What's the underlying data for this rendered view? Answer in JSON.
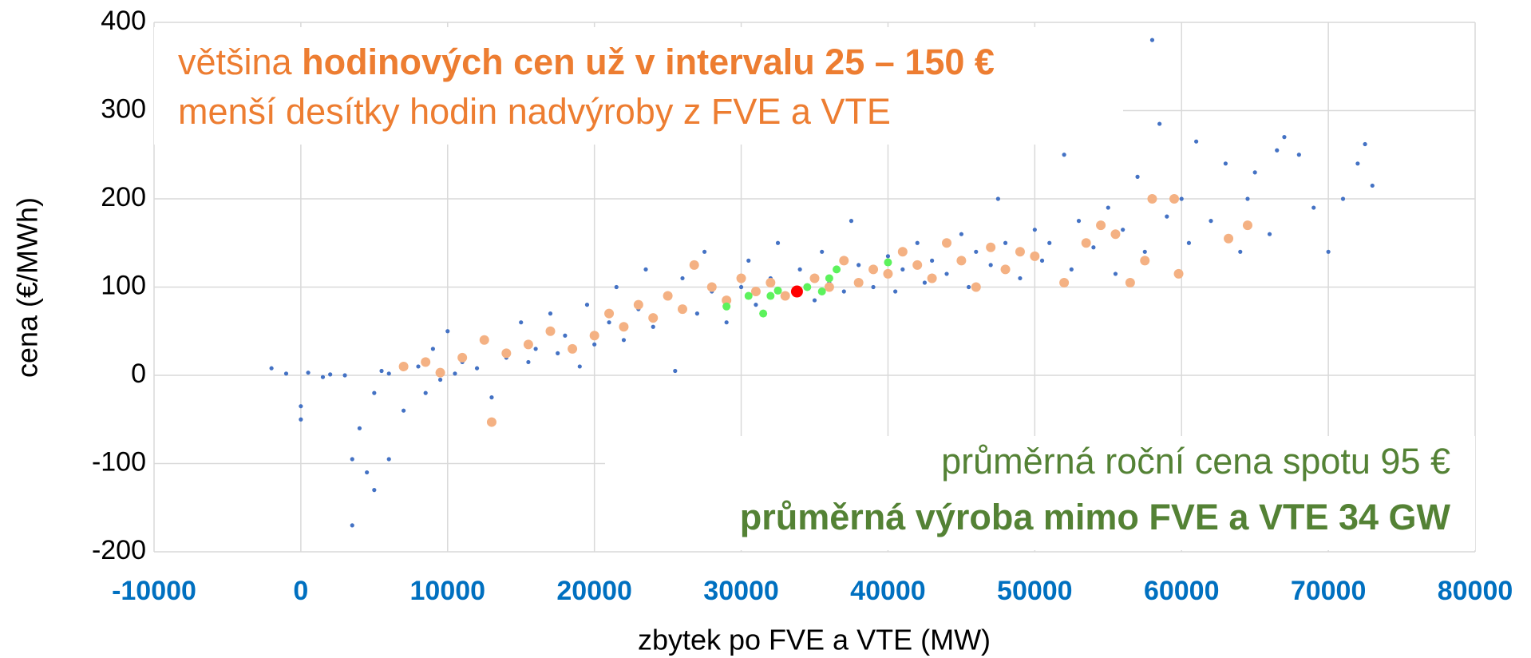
{
  "chart_data": {
    "type": "scatter",
    "x_label": "zbytek po FVE a VTE (MW)",
    "y_label": "cena (€/MWh)",
    "xlim": [
      -10000,
      80000
    ],
    "xticks": [
      -10000,
      0,
      10000,
      20000,
      30000,
      40000,
      50000,
      60000,
      70000,
      80000
    ],
    "ylim": [
      -200,
      400
    ],
    "yticks": [
      -200,
      -100,
      0,
      100,
      200,
      300,
      400
    ],
    "grid": true,
    "xtick_color": "#0070c0",
    "series": [
      {
        "color": "#4472c4",
        "size": 2.6,
        "x": [
          -2000,
          -1000,
          0,
          0,
          500,
          1500,
          2000,
          3000,
          3500,
          3500,
          4000,
          4500,
          5000,
          5000,
          5500,
          6000,
          6000,
          7000,
          8000,
          8500,
          9000,
          9500,
          10000,
          10500,
          11000,
          12000,
          12500,
          13000,
          14000,
          15000,
          15500,
          16000,
          17000,
          17500,
          18000,
          19000,
          19500,
          20000,
          21000,
          21500,
          22000,
          23000,
          23500,
          24000,
          25000,
          25500,
          26000,
          27000,
          27500,
          28000,
          29000,
          30000,
          30500,
          31000,
          32000,
          32500,
          33000,
          34000,
          35000,
          35500,
          36000,
          37000,
          37500,
          38000,
          39000,
          40000,
          40500,
          41000,
          42000,
          42500,
          43000,
          44000,
          45000,
          45500,
          46000,
          47000,
          47500,
          48000,
          49000,
          50000,
          50500,
          51000,
          52000,
          52500,
          53000,
          54000,
          55000,
          55500,
          56000,
          57000,
          57500,
          58000,
          58500,
          59000,
          60000,
          60500,
          61000,
          62000,
          63000,
          64000,
          64500,
          65000,
          66000,
          66500,
          67000,
          68000,
          69000,
          70000,
          71000,
          72000,
          72500,
          73000
        ],
        "values": [
          8,
          2,
          -50,
          -35,
          3,
          -2,
          1,
          0,
          -170,
          -95,
          -60,
          -110,
          -130,
          -20,
          5,
          -95,
          2,
          -40,
          10,
          -20,
          30,
          -5,
          50,
          2,
          15,
          8,
          40,
          -25,
          20,
          60,
          15,
          30,
          70,
          25,
          45,
          10,
          80,
          35,
          60,
          100,
          40,
          75,
          120,
          55,
          90,
          5,
          110,
          70,
          140,
          95,
          60,
          100,
          130,
          80,
          110,
          150,
          90,
          120,
          85,
          140,
          105,
          95,
          175,
          125,
          100,
          135,
          95,
          120,
          150,
          105,
          130,
          115,
          160,
          100,
          140,
          125,
          200,
          150,
          110,
          165,
          130,
          150,
          250,
          120,
          175,
          145,
          190,
          115,
          165,
          225,
          140,
          380,
          285,
          180,
          200,
          150,
          265,
          175,
          240,
          140,
          200,
          230,
          160,
          255,
          270,
          250,
          190,
          140,
          200,
          240,
          262,
          215
        ]
      },
      {
        "color": "#f4b183",
        "size": 6,
        "x": [
          7000,
          8500,
          9500,
          11000,
          12500,
          13000,
          14000,
          15500,
          17000,
          18500,
          20000,
          21000,
          22000,
          23000,
          24000,
          25000,
          26000,
          26800,
          28000,
          29000,
          30000,
          31000,
          32000,
          33000,
          35000,
          36000,
          37000,
          38000,
          39000,
          40000,
          41000,
          42000,
          43000,
          44000,
          45000,
          46000,
          47000,
          48000,
          49000,
          50000,
          52000,
          53500,
          54500,
          55500,
          56500,
          57500,
          58000,
          59500,
          59800,
          63200,
          64500
        ],
        "values": [
          10,
          15,
          3,
          20,
          40,
          -53,
          25,
          35,
          50,
          30,
          45,
          70,
          55,
          80,
          65,
          90,
          75,
          125,
          100,
          85,
          110,
          95,
          105,
          90,
          110,
          100,
          130,
          105,
          120,
          115,
          140,
          125,
          110,
          150,
          130,
          100,
          145,
          120,
          140,
          135,
          105,
          150,
          170,
          160,
          105,
          130,
          200,
          200,
          115,
          155,
          170
        ]
      },
      {
        "color": "#5cf25c",
        "size": 5,
        "x": [
          29000,
          30500,
          31500,
          32000,
          32500,
          34500,
          35500,
          36000,
          36500,
          40000
        ],
        "values": [
          78,
          90,
          70,
          90,
          96,
          100,
          95,
          110,
          120,
          128
        ]
      },
      {
        "color": "#ff0000",
        "size": 7.5,
        "x": [
          33800
        ],
        "values": [
          95
        ]
      }
    ],
    "annotations": [
      {
        "color": "#ed7d31",
        "corner": "top-left",
        "parts": [
          {
            "text": "většina ",
            "bold": false
          },
          {
            "text": "hodinových cen už v intervalu 25 – 150 €",
            "bold": true
          }
        ]
      },
      {
        "color": "#ed7d31",
        "corner": "top-left",
        "parts": [
          {
            "text": "menší desítky hodin nadvýroby z FVE a VTE",
            "bold": false
          }
        ]
      },
      {
        "color": "#548235",
        "corner": "bottom-right",
        "parts": [
          {
            "text": "průměrná roční cena spotu 95 €",
            "bold": false
          }
        ]
      },
      {
        "color": "#548235",
        "corner": "bottom-right",
        "parts": [
          {
            "text": "průměrná výroba mimo FVE a VTE 34 GW",
            "bold": true
          }
        ]
      }
    ]
  }
}
